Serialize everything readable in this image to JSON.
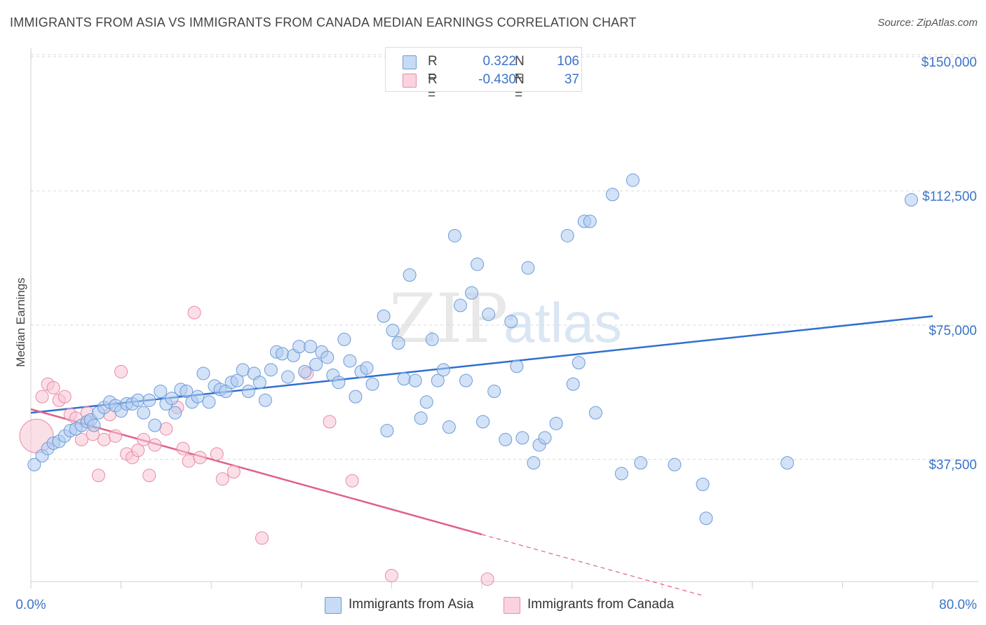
{
  "title": "IMMIGRANTS FROM ASIA VS IMMIGRANTS FROM CANADA MEDIAN EARNINGS CORRELATION CHART",
  "source": "Source: ZipAtlas.com",
  "watermark": {
    "zip": "ZIP",
    "atlas": "atlas"
  },
  "legend": {
    "asia": {
      "r_label": "R =",
      "r_value": "0.322",
      "n_label": "N =",
      "n_value": "106"
    },
    "canada": {
      "r_label": "R =",
      "r_value": "-0.430",
      "n_label": "N =",
      "n_value": "37"
    }
  },
  "colors": {
    "asia_fill": "#aecbf0",
    "asia_stroke": "#6b9bd8",
    "asia_line": "#2f6fce",
    "canada_fill": "#f7c5d3",
    "canada_stroke": "#e88aa8",
    "canada_line": "#e0608a",
    "value_text": "#3b73c8",
    "grid": "#d9d9d9"
  },
  "chart_data": {
    "type": "scatter",
    "title": "IMMIGRANTS FROM ASIA VS IMMIGRANTS FROM CANADA MEDIAN EARNINGS CORRELATION CHART",
    "xlabel": "",
    "ylabel": "Median Earnings",
    "xlim": [
      0,
      80
    ],
    "ylim": [
      0,
      155000
    ],
    "x_tick_labels": [
      "0.0%",
      "80.0%"
    ],
    "y_ticks": [
      37500,
      75000,
      112500,
      150000
    ],
    "y_tick_labels": [
      "$37,500",
      "$75,000",
      "$112,500",
      "$150,000"
    ],
    "grid": true,
    "legend_position": "top-center",
    "series": [
      {
        "name": "Immigrants from Asia",
        "trend": {
          "x": [
            0,
            80
          ],
          "y": [
            50500,
            77500
          ]
        },
        "points": [
          [
            0.3,
            36000
          ],
          [
            1.0,
            38500
          ],
          [
            1.5,
            40500
          ],
          [
            2.0,
            42000
          ],
          [
            2.5,
            42500
          ],
          [
            3.0,
            44000
          ],
          [
            3.5,
            45500
          ],
          [
            4.0,
            46000
          ],
          [
            4.5,
            47000
          ],
          [
            5.0,
            48000
          ],
          [
            5.3,
            48500
          ],
          [
            5.6,
            47000
          ],
          [
            6.0,
            50500
          ],
          [
            6.5,
            52000
          ],
          [
            7.0,
            53500
          ],
          [
            7.5,
            52500
          ],
          [
            8.0,
            51000
          ],
          [
            8.5,
            53000
          ],
          [
            9.0,
            53000
          ],
          [
            9.5,
            54000
          ],
          [
            10.0,
            50500
          ],
          [
            10.5,
            54000
          ],
          [
            11.0,
            47000
          ],
          [
            11.5,
            56500
          ],
          [
            12.0,
            53000
          ],
          [
            12.5,
            54500
          ],
          [
            12.8,
            50500
          ],
          [
            13.3,
            57000
          ],
          [
            13.8,
            56500
          ],
          [
            14.3,
            53500
          ],
          [
            14.8,
            55000
          ],
          [
            15.3,
            61500
          ],
          [
            15.8,
            53500
          ],
          [
            16.3,
            58000
          ],
          [
            16.8,
            57000
          ],
          [
            17.3,
            56500
          ],
          [
            17.8,
            59000
          ],
          [
            18.3,
            59500
          ],
          [
            18.8,
            62500
          ],
          [
            19.3,
            56500
          ],
          [
            19.8,
            61500
          ],
          [
            20.3,
            59000
          ],
          [
            20.8,
            54000
          ],
          [
            21.3,
            62500
          ],
          [
            21.8,
            67500
          ],
          [
            22.3,
            67000
          ],
          [
            22.8,
            60500
          ],
          [
            23.3,
            66500
          ],
          [
            23.8,
            69000
          ],
          [
            24.3,
            62000
          ],
          [
            24.8,
            69000
          ],
          [
            25.3,
            64000
          ],
          [
            25.8,
            67500
          ],
          [
            26.3,
            66000
          ],
          [
            26.8,
            61000
          ],
          [
            27.3,
            59000
          ],
          [
            27.8,
            71000
          ],
          [
            28.3,
            65000
          ],
          [
            28.8,
            55000
          ],
          [
            29.3,
            62000
          ],
          [
            29.8,
            63000
          ],
          [
            30.3,
            58500
          ],
          [
            31.3,
            77500
          ],
          [
            31.6,
            45500
          ],
          [
            32.1,
            73500
          ],
          [
            32.6,
            70000
          ],
          [
            33.1,
            60000
          ],
          [
            33.6,
            89000
          ],
          [
            34.1,
            59500
          ],
          [
            34.6,
            49000
          ],
          [
            35.1,
            53500
          ],
          [
            35.6,
            71000
          ],
          [
            36.1,
            59500
          ],
          [
            36.6,
            62500
          ],
          [
            37.1,
            46500
          ],
          [
            37.6,
            100000
          ],
          [
            38.1,
            80500
          ],
          [
            38.6,
            59500
          ],
          [
            39.1,
            84000
          ],
          [
            39.6,
            92000
          ],
          [
            40.1,
            48000
          ],
          [
            40.6,
            78000
          ],
          [
            41.1,
            56500
          ],
          [
            42.1,
            43000
          ],
          [
            42.6,
            76000
          ],
          [
            43.1,
            63500
          ],
          [
            43.6,
            43500
          ],
          [
            44.1,
            91000
          ],
          [
            44.6,
            36500
          ],
          [
            45.1,
            41500
          ],
          [
            45.6,
            43500
          ],
          [
            46.6,
            47500
          ],
          [
            47.6,
            100000
          ],
          [
            48.1,
            58500
          ],
          [
            48.6,
            64500
          ],
          [
            49.1,
            104000
          ],
          [
            49.6,
            104000
          ],
          [
            50.1,
            50500
          ],
          [
            51.6,
            111500
          ],
          [
            52.4,
            33500
          ],
          [
            53.4,
            115500
          ],
          [
            54.1,
            36500
          ],
          [
            57.1,
            36000
          ],
          [
            59.6,
            30500
          ],
          [
            59.9,
            21000
          ],
          [
            67.1,
            36500
          ],
          [
            78.1,
            110000
          ]
        ]
      },
      {
        "name": "Immigrants from Canada",
        "trend": {
          "x": [
            0,
            40
          ],
          "y": [
            51500,
            16500
          ]
        },
        "trend_dashed_extension": {
          "x": [
            40,
            59.5
          ],
          "y": [
            16500,
            -500
          ]
        },
        "points": [
          [
            0.5,
            44000
          ],
          [
            1.0,
            55000
          ],
          [
            1.5,
            58500
          ],
          [
            2.0,
            57500
          ],
          [
            2.5,
            54000
          ],
          [
            3.0,
            55000
          ],
          [
            3.5,
            50000
          ],
          [
            4.0,
            49000
          ],
          [
            4.5,
            43000
          ],
          [
            5.0,
            50500
          ],
          [
            5.5,
            44500
          ],
          [
            6.0,
            33000
          ],
          [
            6.5,
            43000
          ],
          [
            7.0,
            50000
          ],
          [
            7.5,
            44000
          ],
          [
            8.0,
            62000
          ],
          [
            8.5,
            39000
          ],
          [
            9.0,
            38000
          ],
          [
            9.5,
            40000
          ],
          [
            10.0,
            43000
          ],
          [
            10.5,
            33000
          ],
          [
            11.0,
            41500
          ],
          [
            12.0,
            46000
          ],
          [
            13.0,
            52000
          ],
          [
            13.5,
            40500
          ],
          [
            14.0,
            37000
          ],
          [
            14.5,
            78500
          ],
          [
            15.0,
            38000
          ],
          [
            16.5,
            39000
          ],
          [
            17.0,
            32000
          ],
          [
            18.0,
            34000
          ],
          [
            20.5,
            15500
          ],
          [
            24.5,
            61500
          ],
          [
            26.5,
            48000
          ],
          [
            28.5,
            31500
          ],
          [
            32.0,
            5000
          ],
          [
            40.5,
            4000
          ]
        ]
      }
    ]
  },
  "bottom_legend": {
    "asia": "Immigrants from Asia",
    "canada": "Immigrants from Canada"
  }
}
